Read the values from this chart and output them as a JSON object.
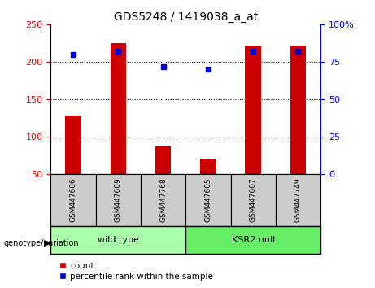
{
  "title": "GDS5248 / 1419038_a_at",
  "categories": [
    "GSM447606",
    "GSM447609",
    "GSM447768",
    "GSM447605",
    "GSM447607",
    "GSM447749"
  ],
  "bar_values": [
    128,
    225,
    87,
    71,
    222,
    222
  ],
  "percentile_values": [
    80,
    82,
    72,
    70,
    82,
    82
  ],
  "bar_color": "#cc0000",
  "dot_color": "#0000cc",
  "ylim_left": [
    50,
    250
  ],
  "ylim_right": [
    0,
    100
  ],
  "yticks_left": [
    50,
    100,
    150,
    200,
    250
  ],
  "yticks_right": [
    0,
    25,
    50,
    75,
    100
  ],
  "ytick_labels_right": [
    "0",
    "25",
    "50",
    "75",
    "100%"
  ],
  "grid_values": [
    100,
    150,
    200
  ],
  "wild_type_label": "wild type",
  "ksr2_null_label": "KSR2 null",
  "genotype_label": "genotype/variation",
  "legend_count": "count",
  "legend_percentile": "percentile rank within the sample",
  "wild_type_color": "#aaffaa",
  "ksr2_null_color": "#66ee66",
  "sample_bg_color": "#cccccc",
  "bar_width": 0.35
}
